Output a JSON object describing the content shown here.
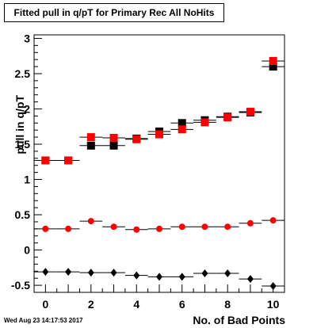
{
  "chart_data": {
    "type": "scatter",
    "title": "Fitted pull in q/pT for Primary Rec All NoHits",
    "xlabel": "No. of Bad Points",
    "ylabel": "pull in q/pT",
    "xlim": [
      -0.5,
      10.5
    ],
    "ylim": [
      -0.6,
      3.05
    ],
    "x_ticks": [
      0,
      2,
      4,
      6,
      8,
      10
    ],
    "y_ticks": [
      -0.5,
      0,
      0.5,
      1,
      1.5,
      2,
      2.5,
      3
    ],
    "grid": false,
    "x": [
      0,
      1,
      2,
      3,
      4,
      5,
      6,
      7,
      8,
      9,
      10
    ],
    "series": [
      {
        "marker": "square",
        "color": "#000000",
        "values": [
          1.27,
          1.27,
          1.48,
          1.48,
          1.58,
          1.68,
          1.8,
          1.84,
          1.89,
          1.95,
          2.6
        ]
      },
      {
        "marker": "square",
        "color": "#ff0000",
        "values": [
          1.27,
          1.27,
          1.6,
          1.59,
          1.57,
          1.64,
          1.71,
          1.81,
          1.88,
          1.96,
          2.68
        ]
      },
      {
        "marker": "circle",
        "color": "#ff0000",
        "values": [
          0.3,
          0.3,
          0.41,
          0.33,
          0.29,
          0.3,
          0.33,
          0.33,
          0.33,
          0.38,
          0.42
        ]
      },
      {
        "marker": "diamond",
        "color": "#000000",
        "values": [
          -0.31,
          -0.31,
          -0.32,
          -0.32,
          -0.36,
          -0.38,
          -0.38,
          -0.33,
          -0.33,
          -0.41,
          -0.51
        ]
      }
    ]
  },
  "footer": {
    "timestamp": "Wed Aug 23 14:17:53 2017"
  }
}
